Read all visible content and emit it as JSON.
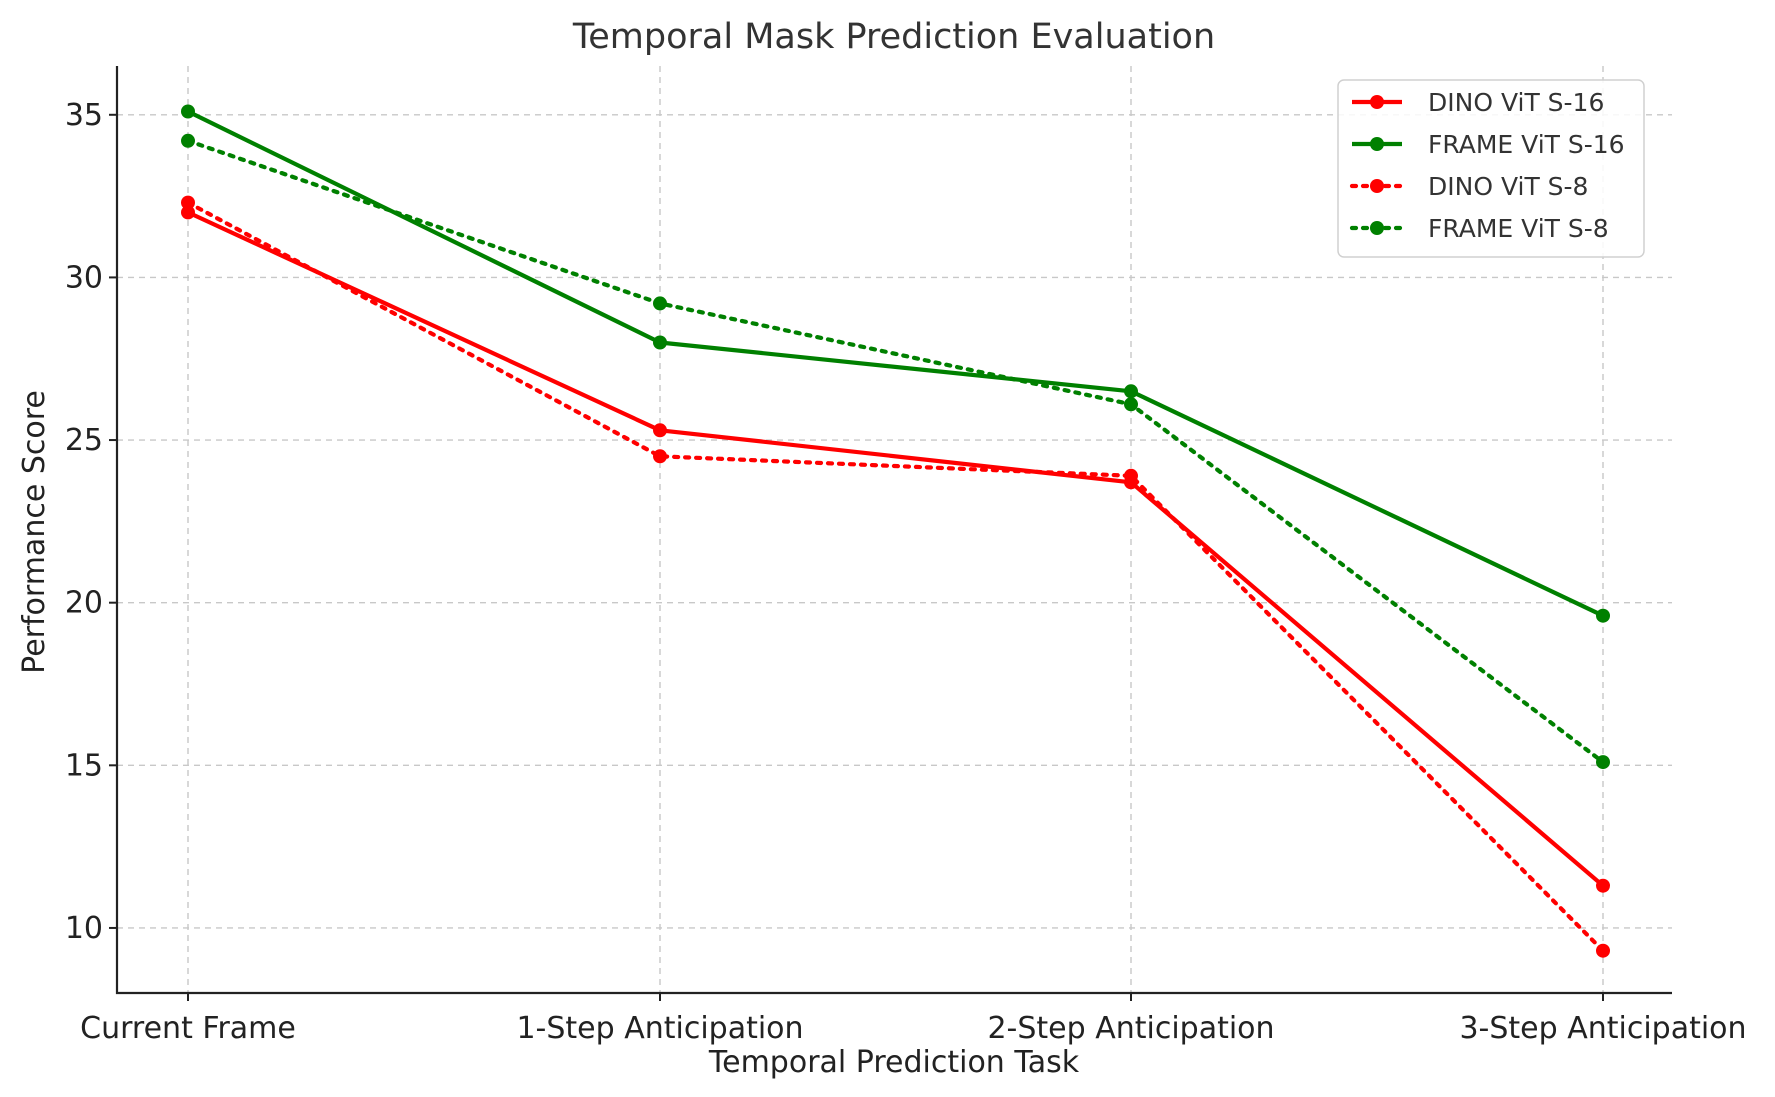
{
  "chart_data": {
    "type": "line",
    "title": "Temporal Mask Prediction Evaluation",
    "xlabel": "Temporal Prediction Task",
    "ylabel": "Performance Score",
    "categories": [
      "Current Frame",
      "1-Step Anticipation",
      "2-Step Anticipation",
      "3-Step Anticipation"
    ],
    "ylim": [
      8,
      36.5
    ],
    "yticks": [
      10,
      15,
      20,
      25,
      30,
      35
    ],
    "grid": true,
    "legend_position": "top-right",
    "series": [
      {
        "name": "DINO ViT S-16",
        "values": [
          32.0,
          25.3,
          23.7,
          11.3
        ],
        "color": "#ff0000",
        "style": "solid"
      },
      {
        "name": "FRAME ViT S-16",
        "values": [
          35.1,
          28.0,
          26.5,
          19.6
        ],
        "color": "#008000",
        "style": "solid"
      },
      {
        "name": "DINO ViT S-8",
        "values": [
          32.3,
          24.5,
          23.9,
          9.3
        ],
        "color": "#ff0000",
        "style": "dotted"
      },
      {
        "name": "FRAME ViT S-8",
        "values": [
          34.2,
          29.2,
          26.1,
          15.1
        ],
        "color": "#008000",
        "style": "dotted"
      }
    ]
  }
}
